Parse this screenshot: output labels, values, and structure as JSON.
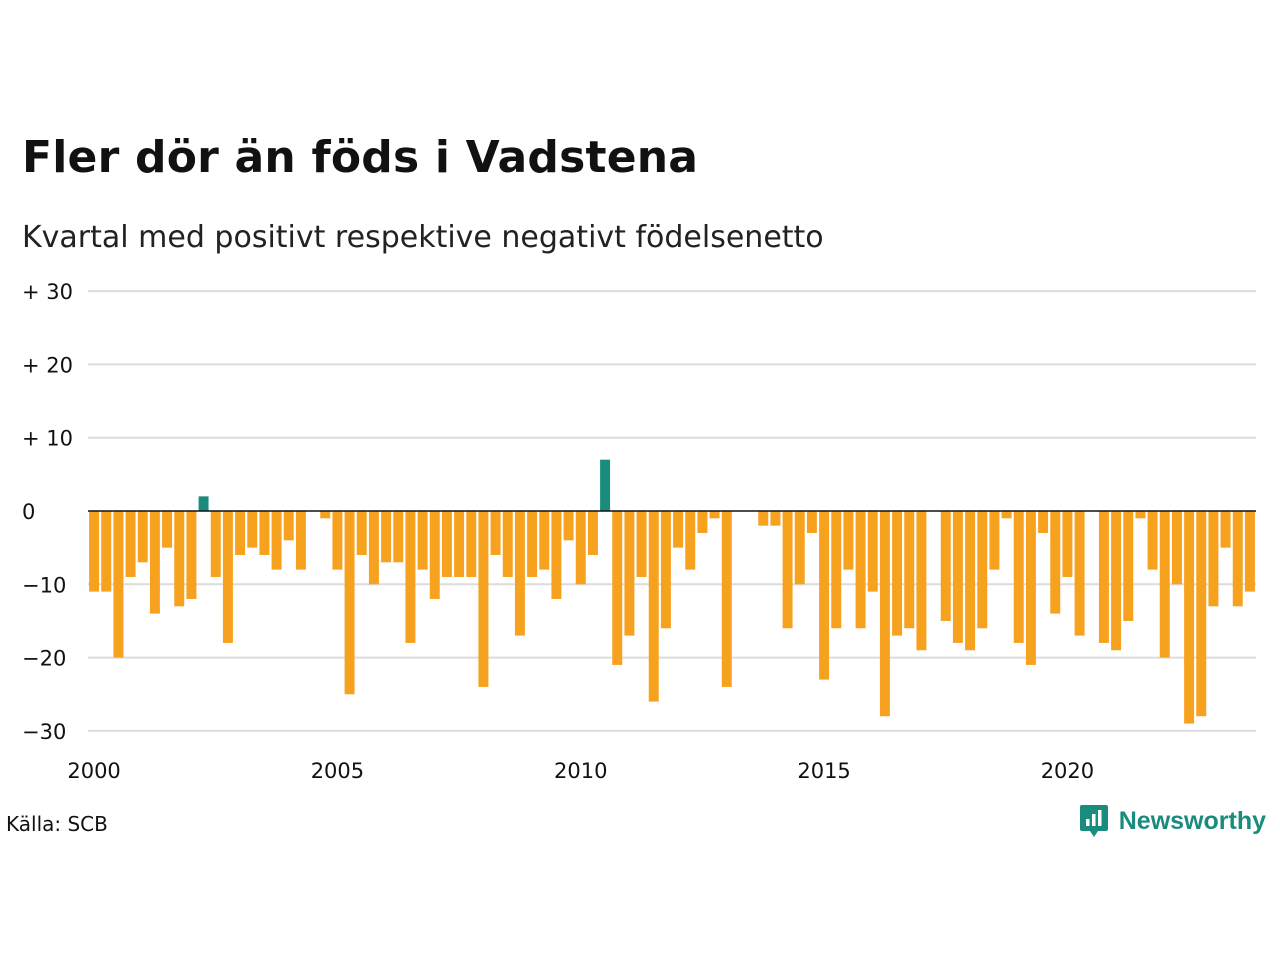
{
  "title": "Fler dör än föds i Vadstena",
  "subtitle": "Kvartal med positivt respektive negativt födelsenetto",
  "source": "Källa: SCB",
  "brand": {
    "name": "Newsworthy",
    "icon": "newsworthy-logo-icon"
  },
  "colors": {
    "positive": "#1a8c7e",
    "negative": "#f7a21f",
    "grid": "#dcdcdc",
    "zero_line": "#111111"
  },
  "chart_data": {
    "type": "bar",
    "x_start": "2000 Q1",
    "x_end": "2023 Q4",
    "values": [
      -11,
      -11,
      -20,
      -9,
      -7,
      -14,
      -5,
      -13,
      -12,
      2,
      -9,
      -18,
      -6,
      -5,
      -6,
      -8,
      -4,
      -8,
      0,
      -1,
      -8,
      -25,
      -6,
      -10,
      -7,
      -7,
      -18,
      -8,
      -12,
      -9,
      -9,
      -9,
      -24,
      -6,
      -9,
      -17,
      -9,
      -8,
      -12,
      -4,
      -10,
      -6,
      7,
      -21,
      -17,
      -9,
      -26,
      -16,
      -5,
      -8,
      -3,
      -1,
      -24,
      0,
      0,
      -2,
      -2,
      -16,
      -10,
      -3,
      -23,
      -16,
      -8,
      -16,
      -11,
      -28,
      -17,
      -16,
      -19,
      0,
      -15,
      -18,
      -19,
      -16,
      -8,
      -1,
      -18,
      -21,
      -3,
      -14,
      -9,
      -17,
      0,
      -18,
      -19,
      -15,
      -1,
      -8,
      -20,
      -10,
      -29,
      -28,
      -13,
      -5,
      -13,
      -11
    ],
    "ylim": [
      -30,
      30
    ],
    "y_ticks": [
      {
        "value": 30,
        "label": "+ 30"
      },
      {
        "value": 20,
        "label": "+ 20"
      },
      {
        "value": 10,
        "label": "+ 10"
      },
      {
        "value": 0,
        "label": "0"
      },
      {
        "value": -10,
        "label": "−10"
      },
      {
        "value": -20,
        "label": "−20"
      },
      {
        "value": -30,
        "label": "−30"
      }
    ],
    "x_ticks": [
      "2000",
      "2005",
      "2010",
      "2015",
      "2020"
    ],
    "grid": true
  }
}
